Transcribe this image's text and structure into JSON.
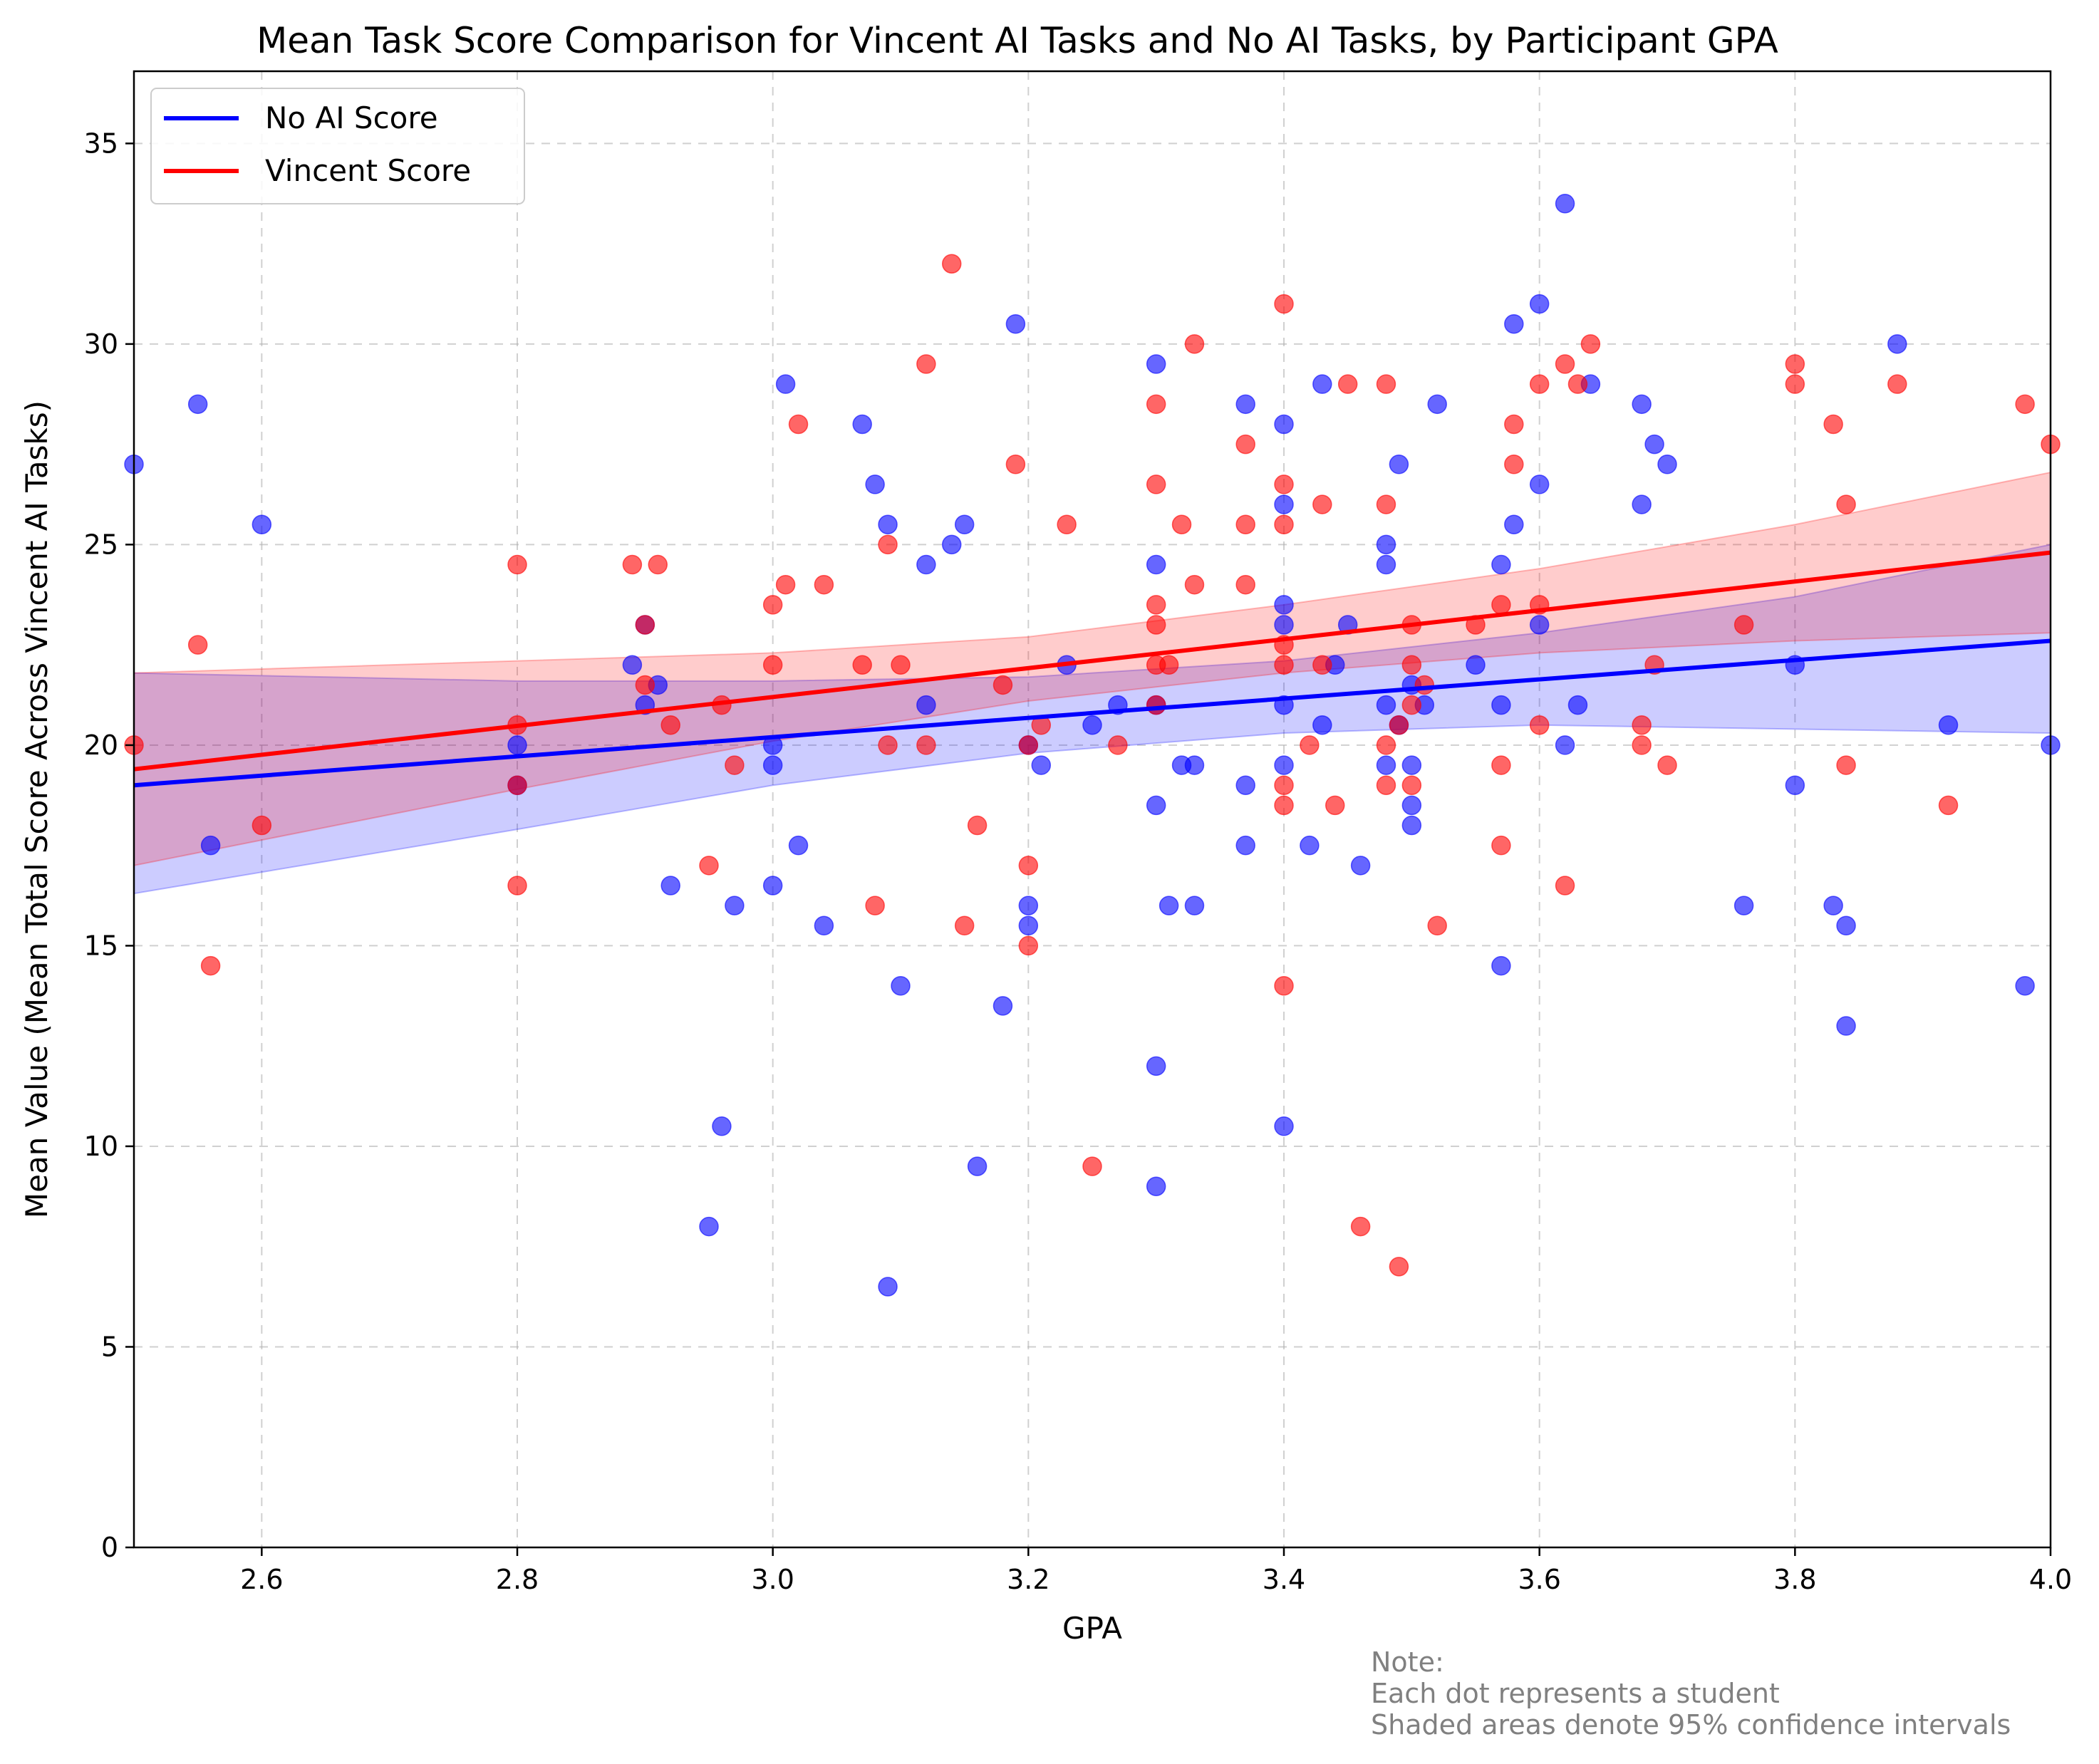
{
  "chart_data": {
    "type": "scatter",
    "title": "Mean Task Score Comparison for Vincent AI Tasks and No AI Tasks, by Participant GPA",
    "xlabel": "GPA",
    "ylabel": "Mean Value (Mean Total Score Across Vincent AI Tasks)",
    "xlim": [
      2.5,
      4.0
    ],
    "ylim": [
      0,
      36.8
    ],
    "xticks": [
      2.6,
      2.8,
      3.0,
      3.2,
      3.4,
      3.6,
      3.8,
      4.0
    ],
    "xtick_labels": [
      "2.6",
      "2.8",
      "3.0",
      "3.2",
      "3.4",
      "3.6",
      "3.8",
      "4.0"
    ],
    "yticks": [
      0,
      5,
      10,
      15,
      20,
      25,
      30,
      35
    ],
    "ytick_labels": [
      "0",
      "5",
      "10",
      "15",
      "20",
      "25",
      "30",
      "35"
    ],
    "grid": true,
    "legend_position": "top-left",
    "note_lines": [
      "Note:",
      "Each dot represents a student",
      "Shaded areas denote 95% confidence intervals"
    ],
    "series": [
      {
        "name": "No AI Score",
        "color": "#0000ff",
        "fit": {
          "x": [
            2.5,
            4.0
          ],
          "y": [
            19.0,
            22.6
          ]
        },
        "ci": {
          "x": [
            2.5,
            2.8,
            3.0,
            3.2,
            3.4,
            3.6,
            3.8,
            4.0
          ],
          "lower": [
            16.3,
            17.9,
            19.0,
            19.8,
            20.3,
            20.5,
            20.4,
            20.3
          ],
          "upper": [
            21.8,
            21.6,
            21.6,
            21.7,
            22.1,
            22.8,
            23.7,
            25.0
          ]
        },
        "points": [
          [
            2.5,
            27.0
          ],
          [
            2.55,
            28.5
          ],
          [
            2.56,
            17.5
          ],
          [
            2.6,
            25.5
          ],
          [
            2.8,
            20.0
          ],
          [
            2.8,
            19.0
          ],
          [
            2.89,
            22.0
          ],
          [
            2.9,
            23.0
          ],
          [
            2.9,
            21.0
          ],
          [
            2.91,
            21.5
          ],
          [
            2.92,
            16.5
          ],
          [
            2.95,
            8.0
          ],
          [
            2.96,
            10.5
          ],
          [
            2.97,
            16.0
          ],
          [
            3.0,
            20.0
          ],
          [
            3.0,
            19.5
          ],
          [
            3.0,
            16.5
          ],
          [
            3.01,
            29.0
          ],
          [
            3.02,
            17.5
          ],
          [
            3.04,
            15.5
          ],
          [
            3.07,
            28.0
          ],
          [
            3.08,
            26.5
          ],
          [
            3.09,
            25.5
          ],
          [
            3.09,
            6.5
          ],
          [
            3.1,
            14.0
          ],
          [
            3.12,
            24.5
          ],
          [
            3.12,
            21.0
          ],
          [
            3.14,
            25.0
          ],
          [
            3.15,
            25.5
          ],
          [
            3.16,
            9.5
          ],
          [
            3.18,
            13.5
          ],
          [
            3.19,
            30.5
          ],
          [
            3.2,
            16.0
          ],
          [
            3.2,
            15.5
          ],
          [
            3.2,
            20.0
          ],
          [
            3.21,
            19.5
          ],
          [
            3.23,
            22.0
          ],
          [
            3.25,
            20.5
          ],
          [
            3.27,
            21.0
          ],
          [
            3.3,
            29.5
          ],
          [
            3.3,
            24.5
          ],
          [
            3.3,
            21.0
          ],
          [
            3.3,
            18.5
          ],
          [
            3.3,
            12.0
          ],
          [
            3.3,
            9.0
          ],
          [
            3.31,
            16.0
          ],
          [
            3.32,
            19.5
          ],
          [
            3.33,
            19.5
          ],
          [
            3.33,
            16.0
          ],
          [
            3.37,
            28.5
          ],
          [
            3.37,
            17.5
          ],
          [
            3.37,
            19.0
          ],
          [
            3.4,
            28.0
          ],
          [
            3.4,
            26.0
          ],
          [
            3.4,
            23.5
          ],
          [
            3.4,
            23.0
          ],
          [
            3.4,
            21.0
          ],
          [
            3.4,
            19.5
          ],
          [
            3.4,
            10.5
          ],
          [
            3.42,
            17.5
          ],
          [
            3.43,
            20.5
          ],
          [
            3.43,
            29.0
          ],
          [
            3.44,
            22.0
          ],
          [
            3.45,
            23.0
          ],
          [
            3.46,
            17.0
          ],
          [
            3.48,
            25.0
          ],
          [
            3.48,
            24.5
          ],
          [
            3.48,
            21.0
          ],
          [
            3.48,
            19.5
          ],
          [
            3.49,
            27.0
          ],
          [
            3.49,
            20.5
          ],
          [
            3.5,
            21.5
          ],
          [
            3.5,
            19.5
          ],
          [
            3.5,
            18.5
          ],
          [
            3.5,
            18.0
          ],
          [
            3.51,
            21.0
          ],
          [
            3.52,
            28.5
          ],
          [
            3.55,
            22.0
          ],
          [
            3.57,
            24.5
          ],
          [
            3.57,
            14.5
          ],
          [
            3.57,
            21.0
          ],
          [
            3.58,
            30.5
          ],
          [
            3.58,
            25.5
          ],
          [
            3.6,
            31.0
          ],
          [
            3.6,
            26.5
          ],
          [
            3.6,
            23.0
          ],
          [
            3.62,
            33.5
          ],
          [
            3.62,
            20.0
          ],
          [
            3.63,
            21.0
          ],
          [
            3.64,
            29.0
          ],
          [
            3.68,
            28.5
          ],
          [
            3.68,
            26.0
          ],
          [
            3.69,
            27.5
          ],
          [
            3.7,
            27.0
          ],
          [
            3.76,
            16.0
          ],
          [
            3.8,
            22.0
          ],
          [
            3.8,
            19.0
          ],
          [
            3.83,
            16.0
          ],
          [
            3.84,
            15.5
          ],
          [
            3.84,
            13.0
          ],
          [
            3.88,
            30.0
          ],
          [
            3.92,
            20.5
          ],
          [
            3.98,
            14.0
          ],
          [
            4.0,
            20.0
          ]
        ]
      },
      {
        "name": "Vincent Score",
        "color": "#ff0000",
        "fit": {
          "x": [
            2.5,
            4.0
          ],
          "y": [
            19.4,
            24.8
          ]
        },
        "ci": {
          "x": [
            2.5,
            2.8,
            3.0,
            3.2,
            3.4,
            3.6,
            3.8,
            4.0
          ],
          "lower": [
            17.0,
            18.9,
            20.1,
            21.1,
            21.8,
            22.3,
            22.6,
            22.8
          ],
          "upper": [
            21.8,
            22.1,
            22.3,
            22.7,
            23.5,
            24.4,
            25.5,
            26.8
          ]
        },
        "points": [
          [
            2.5,
            20.0
          ],
          [
            2.55,
            22.5
          ],
          [
            2.56,
            14.5
          ],
          [
            2.6,
            18.0
          ],
          [
            2.8,
            24.5
          ],
          [
            2.8,
            20.5
          ],
          [
            2.8,
            19.0
          ],
          [
            2.8,
            16.5
          ],
          [
            2.89,
            24.5
          ],
          [
            2.9,
            23.0
          ],
          [
            2.9,
            21.5
          ],
          [
            2.91,
            24.5
          ],
          [
            2.92,
            20.5
          ],
          [
            2.95,
            17.0
          ],
          [
            2.96,
            21.0
          ],
          [
            2.97,
            19.5
          ],
          [
            3.0,
            23.5
          ],
          [
            3.0,
            22.0
          ],
          [
            3.01,
            24.0
          ],
          [
            3.02,
            28.0
          ],
          [
            3.04,
            24.0
          ],
          [
            3.07,
            22.0
          ],
          [
            3.08,
            16.0
          ],
          [
            3.09,
            25.0
          ],
          [
            3.09,
            20.0
          ],
          [
            3.1,
            22.0
          ],
          [
            3.12,
            29.5
          ],
          [
            3.12,
            20.0
          ],
          [
            3.14,
            32.0
          ],
          [
            3.15,
            15.5
          ],
          [
            3.16,
            18.0
          ],
          [
            3.18,
            21.5
          ],
          [
            3.19,
            27.0
          ],
          [
            3.2,
            17.0
          ],
          [
            3.2,
            20.0
          ],
          [
            3.2,
            15.0
          ],
          [
            3.21,
            20.5
          ],
          [
            3.23,
            25.5
          ],
          [
            3.25,
            9.5
          ],
          [
            3.27,
            20.0
          ],
          [
            3.3,
            28.5
          ],
          [
            3.3,
            26.5
          ],
          [
            3.3,
            23.5
          ],
          [
            3.3,
            23.0
          ],
          [
            3.3,
            22.0
          ],
          [
            3.3,
            21.0
          ],
          [
            3.31,
            22.0
          ],
          [
            3.32,
            25.5
          ],
          [
            3.33,
            30.0
          ],
          [
            3.33,
            24.0
          ],
          [
            3.37,
            27.5
          ],
          [
            3.37,
            25.5
          ],
          [
            3.37,
            24.0
          ],
          [
            3.4,
            31.0
          ],
          [
            3.4,
            26.5
          ],
          [
            3.4,
            25.5
          ],
          [
            3.4,
            22.5
          ],
          [
            3.4,
            22.0
          ],
          [
            3.4,
            19.0
          ],
          [
            3.4,
            18.5
          ],
          [
            3.4,
            14.0
          ],
          [
            3.42,
            20.0
          ],
          [
            3.43,
            26.0
          ],
          [
            3.43,
            22.0
          ],
          [
            3.44,
            18.5
          ],
          [
            3.45,
            29.0
          ],
          [
            3.46,
            8.0
          ],
          [
            3.48,
            29.0
          ],
          [
            3.48,
            26.0
          ],
          [
            3.48,
            20.0
          ],
          [
            3.48,
            19.0
          ],
          [
            3.49,
            20.5
          ],
          [
            3.49,
            7.0
          ],
          [
            3.5,
            23.0
          ],
          [
            3.5,
            22.0
          ],
          [
            3.5,
            21.0
          ],
          [
            3.5,
            19.0
          ],
          [
            3.51,
            21.5
          ],
          [
            3.52,
            15.5
          ],
          [
            3.55,
            23.0
          ],
          [
            3.57,
            23.5
          ],
          [
            3.57,
            19.5
          ],
          [
            3.57,
            17.5
          ],
          [
            3.58,
            28.0
          ],
          [
            3.58,
            27.0
          ],
          [
            3.6,
            29.0
          ],
          [
            3.6,
            23.5
          ],
          [
            3.6,
            20.5
          ],
          [
            3.62,
            29.5
          ],
          [
            3.62,
            16.5
          ],
          [
            3.63,
            29.0
          ],
          [
            3.64,
            30.0
          ],
          [
            3.68,
            20.5
          ],
          [
            3.68,
            20.0
          ],
          [
            3.69,
            22.0
          ],
          [
            3.7,
            19.5
          ],
          [
            3.76,
            23.0
          ],
          [
            3.8,
            29.5
          ],
          [
            3.8,
            29.0
          ],
          [
            3.83,
            28.0
          ],
          [
            3.84,
            26.0
          ],
          [
            3.84,
            19.5
          ],
          [
            3.88,
            29.0
          ],
          [
            3.92,
            18.5
          ],
          [
            3.98,
            28.5
          ],
          [
            4.0,
            27.5
          ]
        ]
      }
    ]
  }
}
